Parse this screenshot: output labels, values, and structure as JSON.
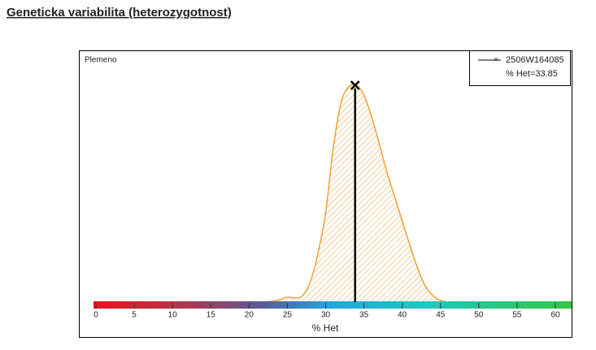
{
  "chart_data": {
    "type": "area",
    "title": "Geneticka variabilita (heterozygotnost)",
    "panel_label": "Plemeno",
    "xlabel": "% Het",
    "xlim": [
      0,
      60
    ],
    "xticks": [
      0,
      5,
      10,
      15,
      20,
      25,
      30,
      35,
      40,
      45,
      50,
      55,
      60
    ],
    "color": "#f0a030",
    "x": [
      22,
      23,
      24,
      25,
      26,
      27,
      28,
      29,
      30,
      31,
      32,
      33,
      34,
      35,
      36,
      37,
      38,
      39,
      40,
      41,
      42,
      43,
      44,
      45,
      46
    ],
    "values": [
      0,
      1,
      3,
      6,
      5,
      8,
      25,
      60,
      110,
      190,
      245,
      265,
      267,
      255,
      228,
      195,
      160,
      130,
      100,
      70,
      42,
      20,
      8,
      2,
      0
    ],
    "marker": {
      "name": "2506W164085",
      "label": "% Het=33.85",
      "value": 33.85
    }
  }
}
